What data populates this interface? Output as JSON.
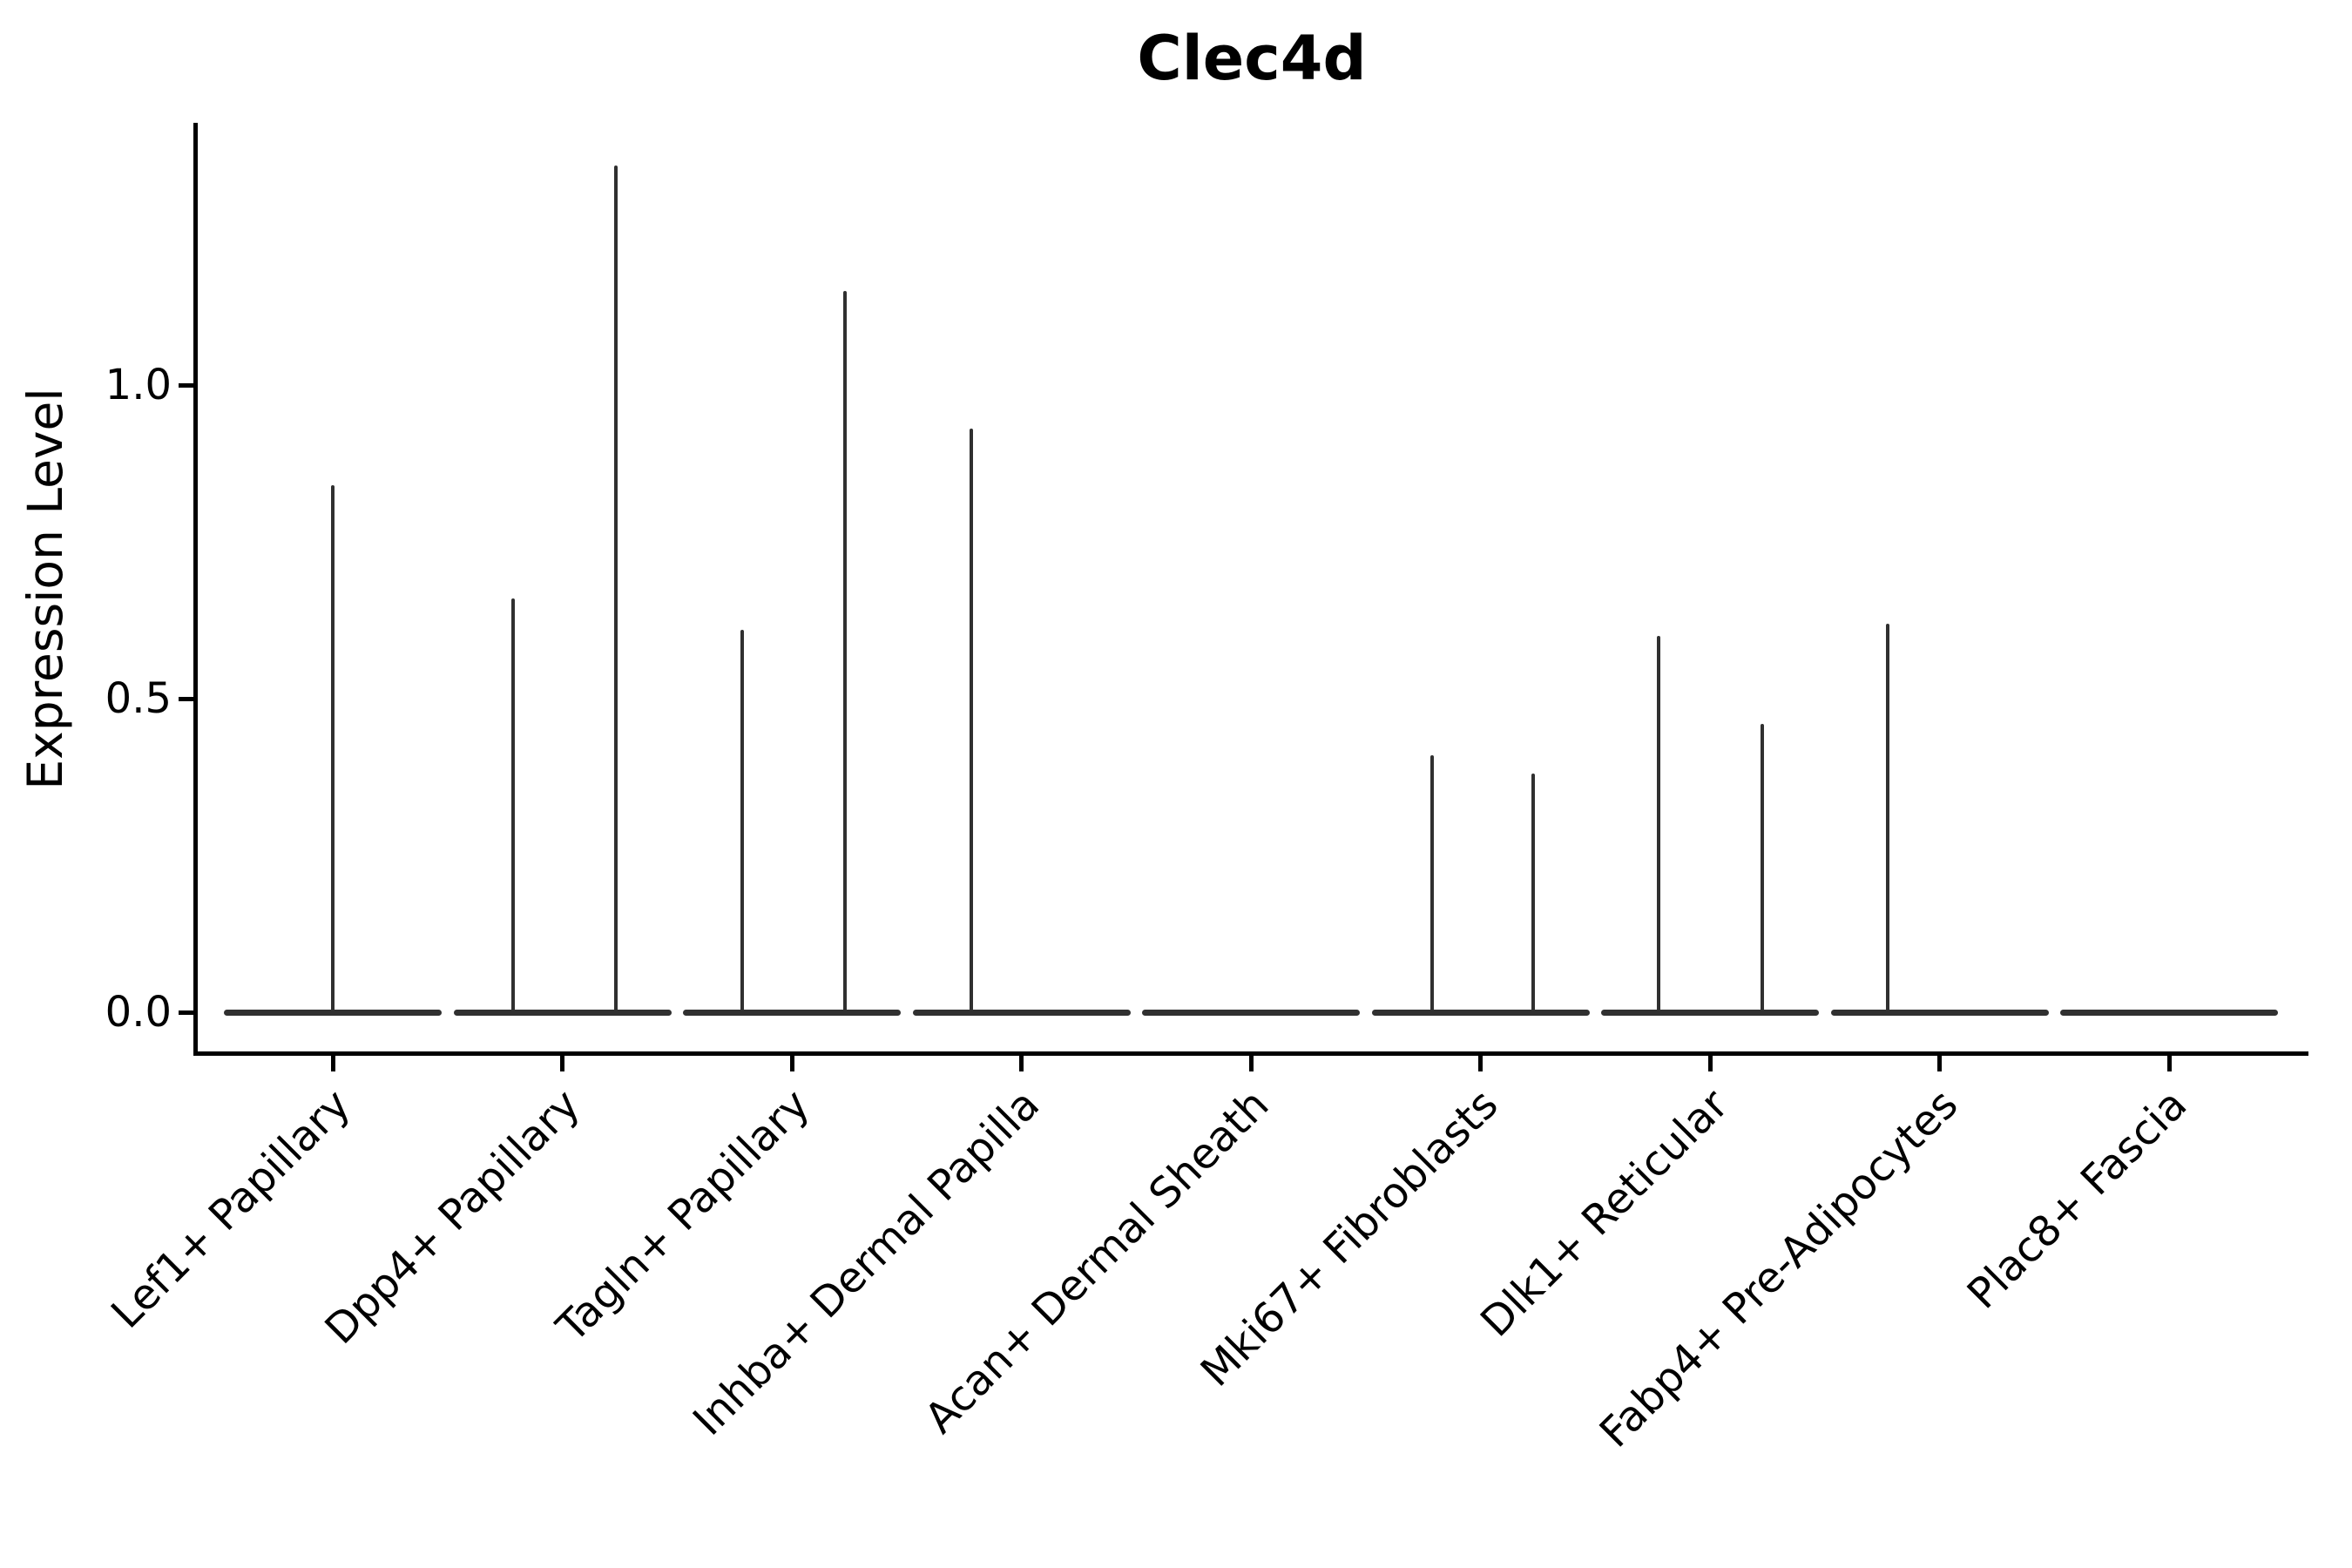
{
  "chart_data": {
    "type": "violin",
    "title": "Clec4d",
    "ylabel": "Expression Level",
    "xlabel": "",
    "grid": false,
    "legend": false,
    "ylim": [
      -0.07,
      1.42
    ],
    "yticks": [
      0.0,
      0.5,
      1.0
    ],
    "categories": [
      "Lef1+ Papillary",
      "Dpp4+ Papillary",
      "Tagln+ Papillary",
      "Inhba+ Dermal Papilla",
      "Acan+ Dermal Sheath",
      "Mki67+ Fibroblasts",
      "Dlk1+ Reticular",
      "Fabp4+ Pre-Adipocytes",
      "Plac8+ Fascia"
    ],
    "series": [
      {
        "name": "Lef1+ Papillary",
        "max_expression": 0.84,
        "spikes": [
          {
            "dx": 0,
            "value": 0.84
          }
        ]
      },
      {
        "name": "Dpp4+ Papillary",
        "max_expression": 1.35,
        "spikes": [
          {
            "dx": -57,
            "value": 0.66
          },
          {
            "dx": 61,
            "value": 1.35
          }
        ]
      },
      {
        "name": "Tagln+ Papillary",
        "max_expression": 1.15,
        "spikes": [
          {
            "dx": -57,
            "value": 0.61
          },
          {
            "dx": 61,
            "value": 1.15
          }
        ]
      },
      {
        "name": "Inhba+ Dermal Papilla",
        "max_expression": 0.93,
        "spikes": [
          {
            "dx": -58,
            "value": 0.93
          }
        ]
      },
      {
        "name": "Acan+ Dermal Sheath",
        "max_expression": 0.0,
        "spikes": []
      },
      {
        "name": "Mki67+ Fibroblasts",
        "max_expression": 0.41,
        "spikes": [
          {
            "dx": -56,
            "value": 0.41
          },
          {
            "dx": 60,
            "value": 0.38
          }
        ]
      },
      {
        "name": "Dlk1+ Reticular",
        "max_expression": 0.6,
        "spikes": [
          {
            "dx": -59,
            "value": 0.6
          },
          {
            "dx": 60,
            "value": 0.46
          }
        ]
      },
      {
        "name": "Fabp4+ Pre-Adipocytes",
        "max_expression": 0.62,
        "spikes": [
          {
            "dx": -60,
            "value": 0.62
          }
        ]
      },
      {
        "name": "Plac8+ Fascia",
        "max_expression": 0.0,
        "spikes": []
      }
    ],
    "violin_color": "#303030",
    "axis_color": "#000000",
    "background_color": "#ffffff"
  }
}
